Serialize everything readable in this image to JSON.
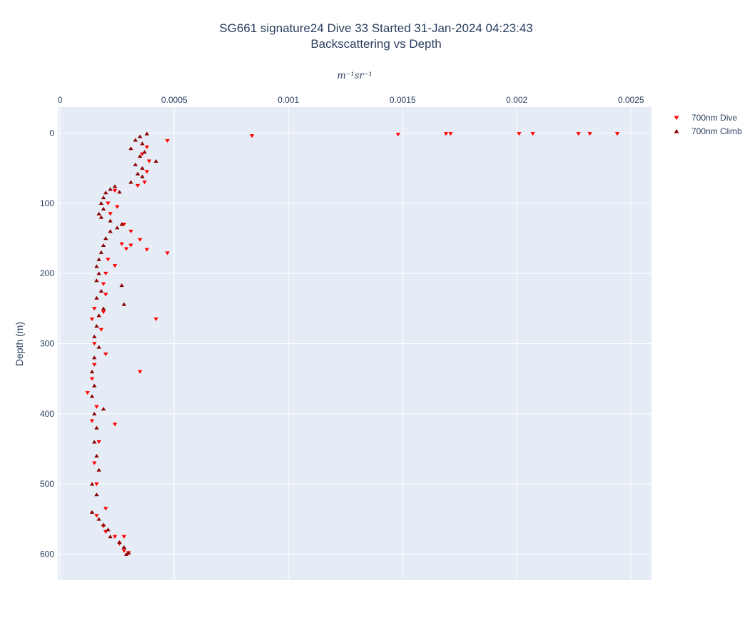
{
  "chart_data": {
    "type": "scatter",
    "title": "SG661 signature24 Dive 33 Started 31-Jan-2024 04:23:43",
    "subtitle": "Backscattering vs Depth",
    "xlabel": "m⁻¹sr⁻¹",
    "ylabel": "Depth (m)",
    "xlim": [
      -1e-05,
      0.00259
    ],
    "ylim": [
      -37,
      637
    ],
    "y_reversed": true,
    "x_axis_position": "top",
    "x_ticks": [
      0,
      0.0005,
      0.001,
      0.0015,
      0.002,
      0.0025
    ],
    "x_tick_labels": [
      "0",
      "0.0005",
      "0.001",
      "0.0015",
      "0.002",
      "0.0025"
    ],
    "y_ticks": [
      0,
      100,
      200,
      300,
      400,
      500,
      600
    ],
    "y_tick_labels": [
      "0",
      "100",
      "200",
      "300",
      "400",
      "500",
      "600"
    ],
    "grid": true,
    "legend_position": "top-right",
    "colors": {
      "dive": "#ff0000",
      "climb": "#8b0000",
      "plot_bg": "#e5ecf6",
      "grid": "#ffffff"
    },
    "series": [
      {
        "name": "700nm Dive",
        "marker": "triangle-down",
        "points": [
          [
            0.00244,
            1
          ],
          [
            0.00232,
            1
          ],
          [
            0.00227,
            1
          ],
          [
            0.00207,
            1
          ],
          [
            0.00201,
            1
          ],
          [
            0.00171,
            1
          ],
          [
            0.00169,
            1
          ],
          [
            0.00148,
            2
          ],
          [
            0.00084,
            4
          ],
          [
            0.00047,
            11
          ],
          [
            0.00038,
            20
          ],
          [
            0.00036,
            30
          ],
          [
            0.00039,
            40
          ],
          [
            0.00038,
            55
          ],
          [
            0.00037,
            70
          ],
          [
            0.00034,
            75
          ],
          [
            0.00024,
            82
          ],
          [
            0.00021,
            100
          ],
          [
            0.00025,
            105
          ],
          [
            0.00022,
            115
          ],
          [
            0.00028,
            130
          ],
          [
            0.00031,
            140
          ],
          [
            0.00035,
            152
          ],
          [
            0.00027,
            158
          ],
          [
            0.00031,
            160
          ],
          [
            0.00029,
            165
          ],
          [
            0.00038,
            166
          ],
          [
            0.00047,
            171
          ],
          [
            0.00021,
            180
          ],
          [
            0.00024,
            189
          ],
          [
            0.0002,
            200
          ],
          [
            0.00019,
            215
          ],
          [
            0.0002,
            230
          ],
          [
            0.00015,
            250
          ],
          [
            0.00019,
            255
          ],
          [
            0.00014,
            265
          ],
          [
            0.00042,
            265
          ],
          [
            0.00018,
            280
          ],
          [
            0.00015,
            300
          ],
          [
            0.0002,
            315
          ],
          [
            0.00015,
            330
          ],
          [
            0.00035,
            340
          ],
          [
            0.00014,
            350
          ],
          [
            0.00012,
            370
          ],
          [
            0.00016,
            390
          ],
          [
            0.00014,
            410
          ],
          [
            0.00024,
            415
          ],
          [
            0.00017,
            440
          ],
          [
            0.00015,
            470
          ],
          [
            0.00016,
            500
          ],
          [
            0.0002,
            535
          ],
          [
            0.00016,
            545
          ],
          [
            0.00019,
            560
          ],
          [
            0.0002,
            568
          ],
          [
            0.00024,
            575
          ],
          [
            0.00028,
            575
          ],
          [
            0.00026,
            585
          ],
          [
            0.00028,
            595
          ],
          [
            0.0003,
            598
          ]
        ]
      },
      {
        "name": "700nm Climb",
        "marker": "triangle-up",
        "points": [
          [
            0.00038,
            1
          ],
          [
            0.00035,
            5
          ],
          [
            0.00033,
            10
          ],
          [
            0.00036,
            15
          ],
          [
            0.00031,
            22
          ],
          [
            0.00037,
            27
          ],
          [
            0.00035,
            33
          ],
          [
            0.00042,
            40
          ],
          [
            0.00033,
            45
          ],
          [
            0.00036,
            50
          ],
          [
            0.00034,
            58
          ],
          [
            0.00036,
            62
          ],
          [
            0.00031,
            70
          ],
          [
            0.00024,
            76
          ],
          [
            0.00022,
            80
          ],
          [
            0.0002,
            85
          ],
          [
            0.00026,
            84
          ],
          [
            0.00019,
            92
          ],
          [
            0.00018,
            100
          ],
          [
            0.00019,
            108
          ],
          [
            0.00017,
            115
          ],
          [
            0.00018,
            120
          ],
          [
            0.00022,
            125
          ],
          [
            0.00027,
            130
          ],
          [
            0.00025,
            135
          ],
          [
            0.00022,
            140
          ],
          [
            0.0002,
            150
          ],
          [
            0.00019,
            160
          ],
          [
            0.00018,
            170
          ],
          [
            0.00017,
            180
          ],
          [
            0.00016,
            190
          ],
          [
            0.00017,
            200
          ],
          [
            0.00016,
            210
          ],
          [
            0.00027,
            217
          ],
          [
            0.00018,
            225
          ],
          [
            0.00016,
            235
          ],
          [
            0.00028,
            244
          ],
          [
            0.00019,
            250
          ],
          [
            0.00017,
            260
          ],
          [
            0.00016,
            275
          ],
          [
            0.00015,
            290
          ],
          [
            0.00017,
            305
          ],
          [
            0.00015,
            320
          ],
          [
            0.00014,
            340
          ],
          [
            0.00015,
            360
          ],
          [
            0.00014,
            375
          ],
          [
            0.00019,
            393
          ],
          [
            0.00015,
            400
          ],
          [
            0.00016,
            420
          ],
          [
            0.00015,
            440
          ],
          [
            0.00016,
            460
          ],
          [
            0.00017,
            480
          ],
          [
            0.00014,
            500
          ],
          [
            0.00016,
            515
          ],
          [
            0.00014,
            540
          ],
          [
            0.00017,
            550
          ],
          [
            0.00019,
            558
          ],
          [
            0.00021,
            565
          ],
          [
            0.00022,
            575
          ],
          [
            0.00026,
            583
          ],
          [
            0.00028,
            590
          ],
          [
            0.0003,
            598
          ],
          [
            0.00029,
            600
          ]
        ]
      }
    ]
  }
}
